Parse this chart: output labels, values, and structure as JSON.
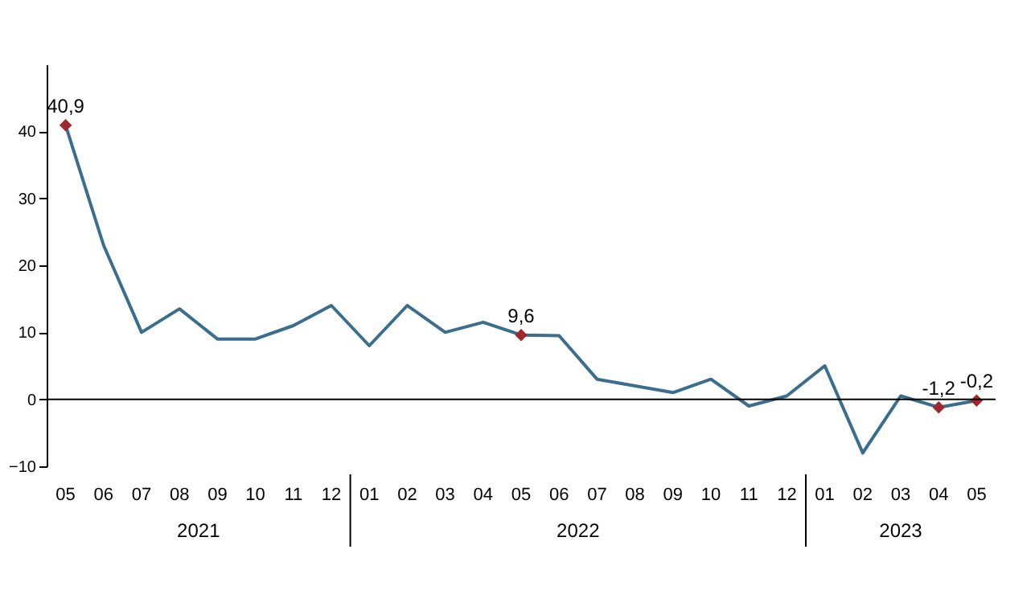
{
  "chart_data": {
    "type": "line",
    "categories": [
      "05",
      "06",
      "07",
      "08",
      "09",
      "10",
      "11",
      "12",
      "01",
      "02",
      "03",
      "04",
      "05",
      "06",
      "07",
      "08",
      "09",
      "10",
      "11",
      "12",
      "01",
      "02",
      "03",
      "04",
      "05"
    ],
    "series": [
      {
        "color": "#3b6e8c",
        "values": [
          40.9,
          23,
          10,
          13.5,
          9,
          9,
          11,
          14,
          8,
          14,
          10,
          11.5,
          9.6,
          9.5,
          3,
          2,
          1,
          3,
          -1,
          0.5,
          5,
          -8,
          0.5,
          -1.2,
          -0.2
        ]
      },
      {
        "type": "scatter",
        "marker": "diamond",
        "color": "#a0282d",
        "values": [
          40.9,
          null,
          null,
          null,
          null,
          null,
          null,
          null,
          null,
          null,
          null,
          null,
          9.6,
          null,
          null,
          null,
          null,
          null,
          null,
          null,
          null,
          null,
          null,
          -1.2,
          -0.2
        ],
        "value_labels": [
          "40,9",
          null,
          null,
          null,
          null,
          null,
          null,
          null,
          null,
          null,
          null,
          null,
          "9,6",
          null,
          null,
          null,
          null,
          null,
          null,
          null,
          null,
          null,
          null,
          "-1,2",
          "-0,2"
        ]
      }
    ],
    "annotations": [
      "2021",
      "2022",
      "2023"
    ],
    "ylim": [
      -10,
      50
    ],
    "yticks": [
      -10,
      0,
      10,
      20,
      30,
      40
    ],
    "line_style": "solid"
  }
}
